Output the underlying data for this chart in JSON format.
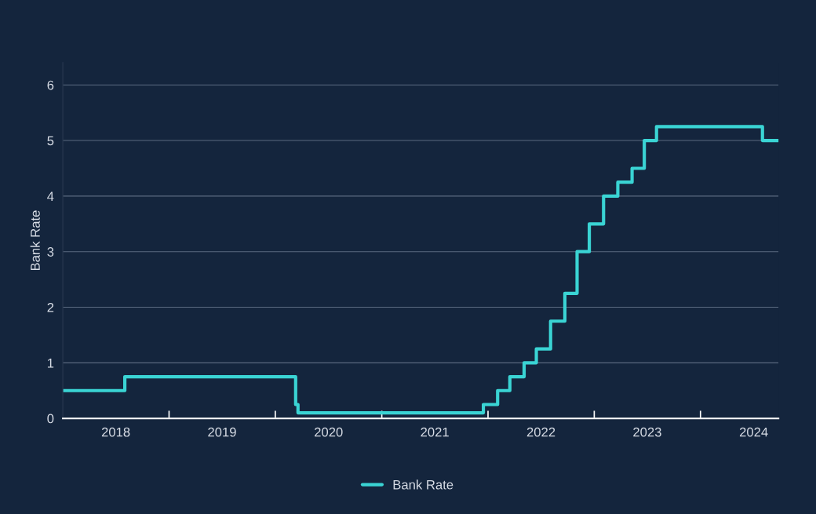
{
  "chart_data": {
    "type": "step",
    "ylabel": "Bank Rate",
    "x": [
      "2018-01-01",
      "2018-08-02",
      "2020-03-11",
      "2020-03-19",
      "2021-12-16",
      "2022-02-03",
      "2022-03-17",
      "2022-05-05",
      "2022-06-16",
      "2022-08-04",
      "2022-09-22",
      "2022-11-03",
      "2022-12-15",
      "2023-02-02",
      "2023-03-23",
      "2023-05-11",
      "2023-06-22",
      "2023-08-03",
      "2024-08-01",
      "2024-09-25"
    ],
    "series": [
      {
        "name": "Bank Rate",
        "color": "#3ad4d4",
        "values": [
          0.5,
          0.75,
          0.25,
          0.1,
          0.25,
          0.5,
          0.75,
          1.0,
          1.25,
          1.75,
          2.25,
          3.0,
          3.5,
          4.0,
          4.25,
          4.5,
          5.0,
          5.25,
          5.0,
          5.0
        ]
      }
    ],
    "xlim": [
      "2018-01-01",
      "2024-09-25"
    ],
    "xticks": [
      {
        "value": "2018-07-02",
        "label": "2018"
      },
      {
        "value": "2019-01-01",
        "label": null
      },
      {
        "value": "2019-07-02",
        "label": "2019"
      },
      {
        "value": "2020-01-01",
        "label": null
      },
      {
        "value": "2020-07-02",
        "label": "2020"
      },
      {
        "value": "2021-01-01",
        "label": null
      },
      {
        "value": "2021-07-02",
        "label": "2021"
      },
      {
        "value": "2022-01-01",
        "label": null
      },
      {
        "value": "2022-07-02",
        "label": "2022"
      },
      {
        "value": "2023-01-01",
        "label": null
      },
      {
        "value": "2023-07-02",
        "label": "2023"
      },
      {
        "value": "2024-01-01",
        "label": null
      },
      {
        "value": "2024-07-02",
        "label": "2024"
      }
    ],
    "ylim": [
      0,
      6.4
    ],
    "yticks": [
      0,
      1,
      2,
      3,
      4,
      5,
      6
    ],
    "grid": "y",
    "legend": "bottom",
    "line_style": "solid",
    "marker": "none"
  }
}
